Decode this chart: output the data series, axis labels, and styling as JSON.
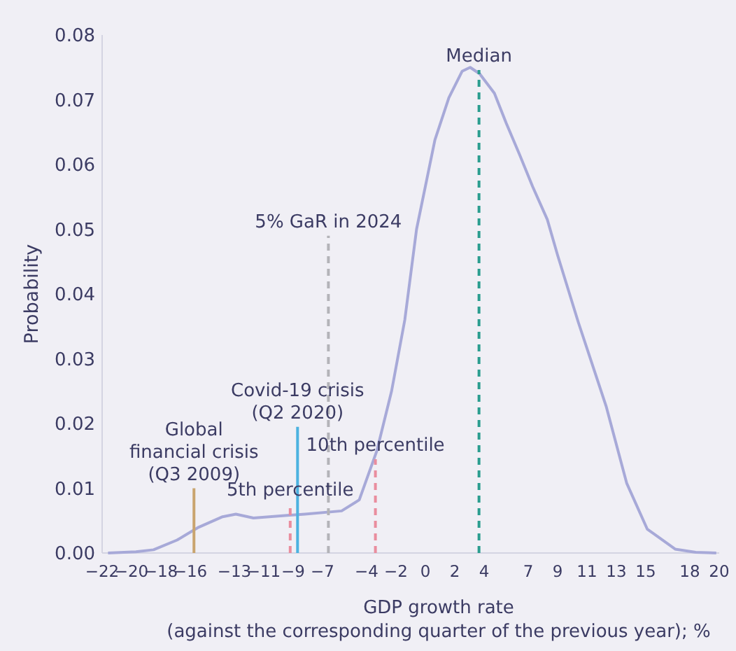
{
  "chart_data": {
    "type": "line",
    "xlabel": "GDP growth rate\n(against the corresponding quarter of the previous year); %",
    "ylabel": "Probability",
    "xlim": [
      -22,
      20
    ],
    "ylim": [
      0,
      0.08
    ],
    "xticks": [
      {
        "value": -22,
        "label": "−22"
      },
      {
        "value": -20,
        "label": "−20"
      },
      {
        "value": -18,
        "label": "−18"
      },
      {
        "value": -16,
        "label": "−16"
      },
      {
        "value": -13,
        "label": "−13"
      },
      {
        "value": -11,
        "label": "−11"
      },
      {
        "value": -9,
        "label": "−9"
      },
      {
        "value": -7,
        "label": "−7"
      },
      {
        "value": -4,
        "label": "−4"
      },
      {
        "value": -2,
        "label": "−2"
      },
      0,
      2,
      4,
      7,
      9,
      11,
      13,
      15,
      18,
      20
    ],
    "yticks": [
      {
        "value": 0,
        "label": "0.00"
      },
      {
        "value": 0.01,
        "label": "0.01"
      },
      {
        "value": 0.02,
        "label": "0.02"
      },
      {
        "value": 0.03,
        "label": "0.03"
      },
      {
        "value": 0.04,
        "label": "0.04"
      },
      {
        "value": 0.05,
        "label": "0.05"
      },
      {
        "value": 0.06,
        "label": "0.06"
      },
      {
        "value": 0.07,
        "label": "0.07"
      },
      {
        "value": 0.08,
        "label": "0.08"
      }
    ],
    "grid": false,
    "marker": "none",
    "series": [
      {
        "color": "#a7a9d8",
        "line_style": "solid",
        "x": [
          -21.6,
          -19.7,
          -18.5,
          -16.9,
          -15.5,
          -13.8,
          -12.9,
          -11.7,
          -9.4,
          -8.2,
          -5.7,
          -4.5,
          -3.3,
          -2.3,
          -1.4,
          -0.6,
          0.65,
          1.6,
          2.5,
          3.05,
          3.7,
          4.7,
          5.5,
          6.4,
          7.3,
          8.3,
          9.0,
          10.4,
          12.3,
          13.7,
          15.1,
          17.0,
          18.4,
          19.8
        ],
        "values": [
          0,
          0.0002,
          0.0005,
          0.002,
          0.0039,
          0.0056,
          0.006,
          0.0054,
          0.0058,
          0.006,
          0.0065,
          0.0082,
          0.0158,
          0.025,
          0.036,
          0.05,
          0.0638,
          0.0703,
          0.0744,
          0.075,
          0.074,
          0.071,
          0.0664,
          0.0616,
          0.0566,
          0.0515,
          0.046,
          0.0357,
          0.0227,
          0.0108,
          0.0037,
          0.0006,
          0.0001,
          0
        ]
      },
      {
        "color": "#c9a46e",
        "line_style": "solid",
        "x": [
          -15.75,
          -15.75
        ],
        "values": [
          0,
          0.01
        ]
      },
      {
        "color": "#e98d9e",
        "line_style": "dashed",
        "x": [
          -9.2,
          -9.2
        ],
        "values": [
          0,
          0.0076
        ]
      },
      {
        "color": "#4cb2e0",
        "line_style": "solid",
        "x": [
          -8.7,
          -8.7
        ],
        "values": [
          0,
          0.0195
        ]
      },
      {
        "color": "#b3b3b8",
        "line_style": "dashed",
        "x": [
          -6.6,
          -6.6
        ],
        "values": [
          0,
          0.049
        ]
      },
      {
        "color": "#e98d9e",
        "line_style": "dashed",
        "x": [
          -3.4,
          -3.4
        ],
        "values": [
          0,
          0.0145
        ]
      },
      {
        "color": "#2a9d8f",
        "line_style": "dashed",
        "x": [
          3.65,
          3.65
        ],
        "values": [
          0,
          0.0746
        ]
      }
    ],
    "annotations": [
      {
        "text": "Global\nfinancial crisis\n(Q3 2009)",
        "x": -15.75,
        "y": 0.01
      },
      {
        "text": "5th percentile",
        "x": -9.2,
        "y": 0.0076
      },
      {
        "text": "Covid-19 crisis\n(Q2 2020)",
        "x": -8.7,
        "y": 0.0195
      },
      {
        "text": "5% GaR in 2024",
        "x": -6.6,
        "y": 0.049
      },
      {
        "text": "10th percentile",
        "x": -3.4,
        "y": 0.0145
      },
      {
        "text": "Median",
        "x": 3.65,
        "y": 0.0746
      }
    ]
  }
}
